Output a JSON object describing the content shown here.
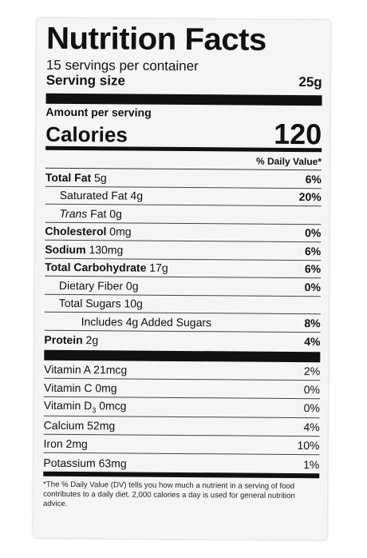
{
  "title": "Nutrition Facts",
  "servings_per_container": "15 servings per container",
  "serving_size_label": "Serving size",
  "serving_size_value": "25g",
  "amount_per_serving": "Amount per serving",
  "calories_label": "Calories",
  "calories_value": "120",
  "daily_value_header": "% Daily Value*",
  "nutrients": [
    {
      "bold": "Total Fat",
      "rest": " 5g",
      "dv": "6%"
    },
    {
      "bold": "",
      "rest": "Saturated Fat 4g",
      "dv": "20%"
    },
    {
      "italic": "Trans",
      "rest": " Fat 0g",
      "dv": ""
    },
    {
      "bold": "Cholesterol",
      "rest": " 0mg",
      "dv": "0%"
    },
    {
      "bold": "Sodium",
      "rest": " 130mg",
      "dv": "6%"
    },
    {
      "bold": "Total Carbohydrate",
      "rest": " 17g",
      "dv": "6%"
    },
    {
      "bold": "",
      "rest": "Dietary Fiber 0g",
      "dv": "0%"
    },
    {
      "bold": "",
      "rest": "Total Sugars 10g",
      "dv": ""
    },
    {
      "bold": "",
      "rest": "Includes 4g Added Sugars",
      "dv": "8%"
    },
    {
      "bold": "Protein",
      "rest": " 2g",
      "dv": "4%"
    }
  ],
  "vitamins": [
    {
      "name": "Vitamin A 21mcg",
      "dv": "2%"
    },
    {
      "name": "Vitamin C 0mg",
      "dv": "0%"
    },
    {
      "name_main": "Vitamin D",
      "name_sub": "3",
      "name_rest": " 0mcg",
      "dv": "0%"
    },
    {
      "name": "Calcium 52mg",
      "dv": "4%"
    },
    {
      "name": "Iron 2mg",
      "dv": "10%"
    },
    {
      "name": "Potassium 63mg",
      "dv": "1%"
    }
  ],
  "footnote": "*The % Daily Value (DV) tells you how much a nutrient in a serving of food contributes to a daily diet. 2,000 calories a day is used for general nutrition advice."
}
